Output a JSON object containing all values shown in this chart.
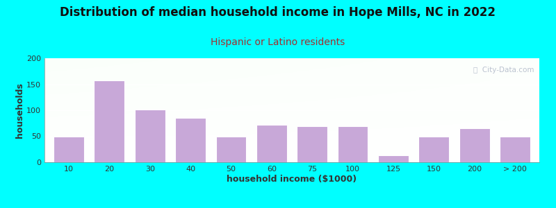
{
  "title": "Distribution of median household income in Hope Mills, NC in 2022",
  "subtitle": "Hispanic or Latino residents",
  "xlabel": "household income ($1000)",
  "ylabel": "households",
  "background_color": "#00FFFF",
  "bar_color": "#c8a8d8",
  "bar_edge_color": "#ffffff",
  "categories": [
    "10",
    "20",
    "30",
    "40",
    "50",
    "60",
    "75",
    "100",
    "125",
    "150",
    "200",
    "> 200"
  ],
  "values": [
    50,
    157,
    102,
    85,
    50,
    72,
    70,
    70,
    13,
    50,
    65,
    50
  ],
  "ylim": [
    0,
    200
  ],
  "yticks": [
    0,
    50,
    100,
    150,
    200
  ],
  "title_fontsize": 12,
  "subtitle_fontsize": 10,
  "subtitle_color": "#a03030",
  "axis_label_fontsize": 9,
  "tick_fontsize": 8,
  "watermark_text": "ⓘ  City-Data.com",
  "watermark_color": "#b0b8c8",
  "plot_bg_top": "#ddeedd",
  "plot_bg_bottom": "#f8fbf8",
  "grid_color": "#dddddd"
}
